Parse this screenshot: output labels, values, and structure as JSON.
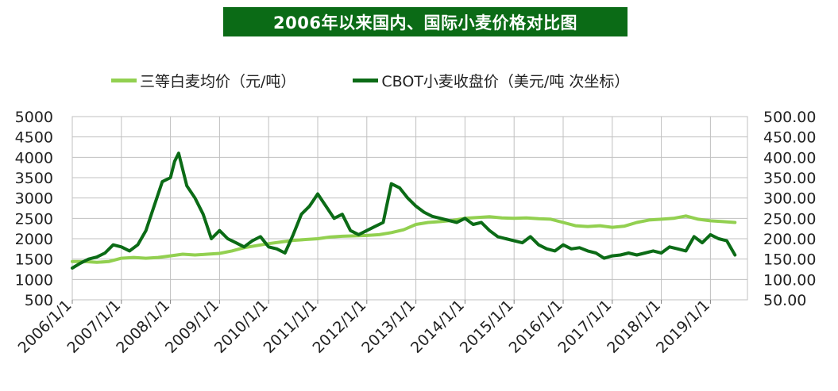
{
  "chart_data": {
    "type": "line",
    "title": "2006年以来国内、国际小麦价格对比图",
    "x_ticks": [
      "2006/1/1",
      "2007/1/1",
      "2008/1/1",
      "2009/1/1",
      "2010/1/1",
      "2011/1/1",
      "2012/1/1",
      "2013/1/1",
      "2014/1/1",
      "2015/1/1",
      "2016/1/1",
      "2017/1/1",
      "2018/1/1",
      "2019/1/1"
    ],
    "y_left": {
      "ylim": [
        500,
        5000
      ],
      "ticks": [
        "5000",
        "4500",
        "4000",
        "3500",
        "3000",
        "2500",
        "2000",
        "1500",
        "1000",
        "500"
      ]
    },
    "y_right": {
      "ylim": [
        50,
        500
      ],
      "ticks": [
        "500.00",
        "450.00",
        "400.00",
        "350.00",
        "300.00",
        "250.00",
        "200.00",
        "150.00",
        "100.00",
        "50.00"
      ]
    },
    "grid": true,
    "legend_position": "top",
    "series": [
      {
        "name": "三等白麦均价（元/吨）",
        "axis": "left",
        "color": "#92d050",
        "x": [
          "2006-01",
          "2006-04",
          "2006-07",
          "2006-10",
          "2007-01",
          "2007-04",
          "2007-07",
          "2007-10",
          "2008-01",
          "2008-04",
          "2008-07",
          "2008-10",
          "2009-01",
          "2009-04",
          "2009-07",
          "2009-10",
          "2010-01",
          "2010-04",
          "2010-07",
          "2010-10",
          "2011-01",
          "2011-04",
          "2011-07",
          "2011-10",
          "2012-01",
          "2012-04",
          "2012-07",
          "2012-10",
          "2013-01",
          "2013-04",
          "2013-07",
          "2013-10",
          "2014-01",
          "2014-04",
          "2014-07",
          "2014-10",
          "2015-01",
          "2015-04",
          "2015-07",
          "2015-10",
          "2016-01",
          "2016-04",
          "2016-07",
          "2016-10",
          "2017-01",
          "2017-04",
          "2017-07",
          "2017-10",
          "2018-01",
          "2018-04",
          "2018-07",
          "2018-10",
          "2019-01",
          "2019-04",
          "2019-07"
        ],
        "values": [
          1440,
          1440,
          1420,
          1440,
          1520,
          1540,
          1520,
          1540,
          1580,
          1620,
          1600,
          1620,
          1640,
          1700,
          1780,
          1830,
          1880,
          1920,
          1960,
          1980,
          2000,
          2040,
          2060,
          2070,
          2080,
          2100,
          2150,
          2220,
          2350,
          2400,
          2420,
          2450,
          2500,
          2520,
          2540,
          2510,
          2500,
          2510,
          2490,
          2480,
          2400,
          2320,
          2300,
          2320,
          2280,
          2310,
          2400,
          2460,
          2480,
          2500,
          2560,
          2480,
          2440,
          2420,
          2400
        ]
      },
      {
        "name": "CBOT小麦收盘价（美元/吨  次坐标）",
        "axis": "right",
        "color": "#0b6b16",
        "x": [
          "2006-01",
          "2006-03",
          "2006-05",
          "2006-07",
          "2006-09",
          "2006-11",
          "2007-01",
          "2007-03",
          "2007-05",
          "2007-07",
          "2007-09",
          "2007-11",
          "2008-01",
          "2008-02",
          "2008-03",
          "2008-05",
          "2008-07",
          "2008-09",
          "2008-11",
          "2009-01",
          "2009-03",
          "2009-05",
          "2009-07",
          "2009-09",
          "2009-11",
          "2010-01",
          "2010-03",
          "2010-05",
          "2010-07",
          "2010-09",
          "2010-11",
          "2011-01",
          "2011-03",
          "2011-05",
          "2011-07",
          "2011-09",
          "2011-11",
          "2012-01",
          "2012-03",
          "2012-05",
          "2012-07",
          "2012-09",
          "2012-11",
          "2013-01",
          "2013-03",
          "2013-05",
          "2013-07",
          "2013-09",
          "2013-11",
          "2014-01",
          "2014-03",
          "2014-05",
          "2014-07",
          "2014-09",
          "2014-11",
          "2015-01",
          "2015-03",
          "2015-05",
          "2015-07",
          "2015-09",
          "2015-11",
          "2016-01",
          "2016-03",
          "2016-05",
          "2016-07",
          "2016-09",
          "2016-11",
          "2017-01",
          "2017-03",
          "2017-05",
          "2017-07",
          "2017-09",
          "2017-11",
          "2018-01",
          "2018-03",
          "2018-05",
          "2018-07",
          "2018-09",
          "2018-11",
          "2019-01",
          "2019-03",
          "2019-05",
          "2019-07"
        ],
        "values": [
          128,
          140,
          150,
          155,
          165,
          185,
          180,
          170,
          185,
          220,
          280,
          340,
          350,
          390,
          410,
          330,
          300,
          260,
          200,
          220,
          200,
          190,
          180,
          195,
          205,
          180,
          175,
          165,
          210,
          260,
          280,
          310,
          280,
          250,
          260,
          220,
          210,
          220,
          230,
          240,
          335,
          325,
          300,
          280,
          265,
          255,
          250,
          245,
          240,
          250,
          235,
          240,
          220,
          205,
          200,
          195,
          190,
          205,
          185,
          175,
          170,
          185,
          175,
          178,
          170,
          165,
          152,
          158,
          160,
          165,
          160,
          165,
          170,
          165,
          180,
          175,
          170,
          205,
          190,
          210,
          200,
          195,
          160
        ]
      }
    ]
  }
}
